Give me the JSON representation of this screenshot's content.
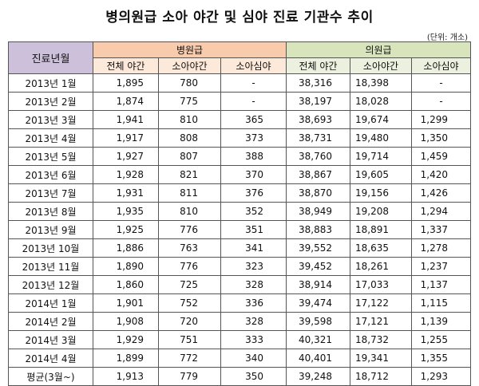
{
  "title": "병의원급 소아 야간 및 심야 진료 기관수 추이",
  "unit": "(단위: 개소)",
  "header": {
    "period": "진료년월",
    "hospital_group": "병원급",
    "clinic_group": "의원급",
    "subcolumns": [
      "전체 야간",
      "소아야간",
      "소아심야",
      "전체 야간",
      "소아야간",
      "소아심야"
    ]
  },
  "rows": [
    {
      "period": "2013년 1월",
      "values": [
        "1,895",
        "780",
        "-",
        "38,316",
        "18,398",
        "-"
      ]
    },
    {
      "period": "2013년 2월",
      "values": [
        "1,874",
        "775",
        "-",
        "38,197",
        "18,028",
        "-"
      ]
    },
    {
      "period": "2013년 3월",
      "values": [
        "1,941",
        "810",
        "365",
        "38,693",
        "19,674",
        "1,299"
      ]
    },
    {
      "period": "2013년 4월",
      "values": [
        "1,917",
        "808",
        "373",
        "38,731",
        "19,480",
        "1,350"
      ]
    },
    {
      "period": "2013년 5월",
      "values": [
        "1,927",
        "807",
        "388",
        "38,760",
        "19,714",
        "1,459"
      ]
    },
    {
      "period": "2013년 6월",
      "values": [
        "1,928",
        "821",
        "370",
        "38,867",
        "19,605",
        "1,420"
      ]
    },
    {
      "period": "2013년 7월",
      "values": [
        "1,931",
        "811",
        "376",
        "38,870",
        "19,156",
        "1,426"
      ]
    },
    {
      "period": "2013년 8월",
      "values": [
        "1,935",
        "810",
        "352",
        "38,949",
        "19,208",
        "1,294"
      ]
    },
    {
      "period": "2013년 9월",
      "values": [
        "1,925",
        "776",
        "351",
        "38,883",
        "18,891",
        "1,337"
      ]
    },
    {
      "period": "2013년 10월",
      "values": [
        "1,886",
        "763",
        "341",
        "39,552",
        "18,635",
        "1,278"
      ]
    },
    {
      "period": "2013년 11월",
      "values": [
        "1,890",
        "776",
        "323",
        "39,452",
        "18,261",
        "1,237"
      ]
    },
    {
      "period": "2013년 12월",
      "values": [
        "1,860",
        "725",
        "328",
        "38,914",
        "17,033",
        "1,137"
      ]
    },
    {
      "period": "2014년 1월",
      "values": [
        "1,901",
        "752",
        "336",
        "39,474",
        "17,122",
        "1,115"
      ]
    },
    {
      "period": "2014년 2월",
      "values": [
        "1,908",
        "720",
        "328",
        "39,598",
        "17,121",
        "1,139"
      ]
    },
    {
      "period": "2014년 3월",
      "values": [
        "1,929",
        "751",
        "333",
        "40,321",
        "18,732",
        "1,255"
      ]
    },
    {
      "period": "2014년 4월",
      "values": [
        "1,899",
        "772",
        "340",
        "40,401",
        "19,341",
        "1,355"
      ]
    },
    {
      "period": "평균(3월~)",
      "values": [
        "1,913",
        "779",
        "350",
        "39,248",
        "18,712",
        "1,293"
      ]
    }
  ]
}
